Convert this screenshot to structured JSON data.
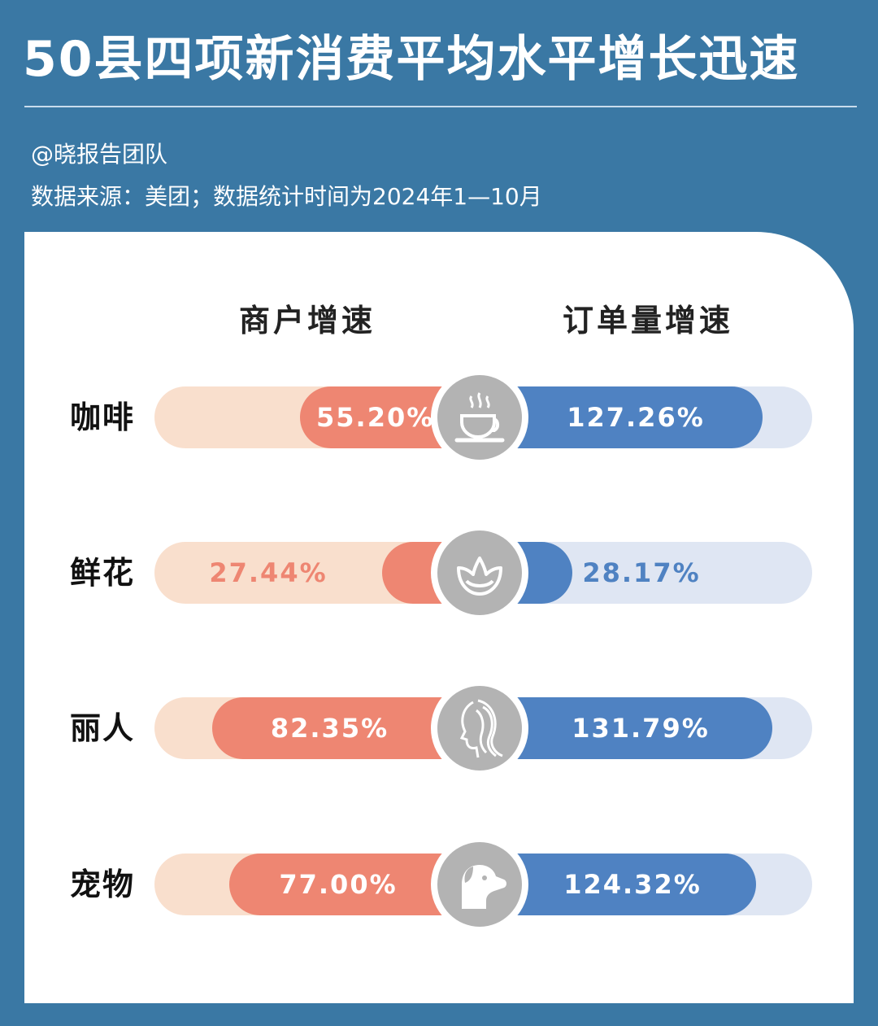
{
  "header": {
    "title": "50县四项新消费平均水平增长迅速",
    "author": "@晓报告团队",
    "source": "数据来源：美团；数据统计时间为2024年1—10月"
  },
  "columns": {
    "left": "商户增速",
    "right": "订单量增速"
  },
  "colors": {
    "left_fill": "#ee8672",
    "left_track": "#f9dfcd",
    "right_fill": "#4f82c2",
    "right_track": "#dfe6f3",
    "icon_bg": "#b3b3b3",
    "background": "#3a78a4"
  },
  "chart_data": {
    "type": "bar",
    "categories": [
      "咖啡",
      "鲜花",
      "丽人",
      "宠物"
    ],
    "icons": [
      "coffee-cup-icon",
      "flower-bud-icon",
      "woman-profile-icon",
      "dog-icon"
    ],
    "series": [
      {
        "name": "商户增速",
        "values": [
          55.2,
          27.44,
          82.35,
          77.0
        ],
        "labels": [
          "55.20%",
          "27.44%",
          "82.35%",
          "77.00%"
        ]
      },
      {
        "name": "订单量增速",
        "values": [
          127.26,
          28.17,
          131.79,
          124.32
        ],
        "labels": [
          "127.26%",
          "28.17%",
          "131.79%",
          "124.32%"
        ]
      }
    ]
  }
}
